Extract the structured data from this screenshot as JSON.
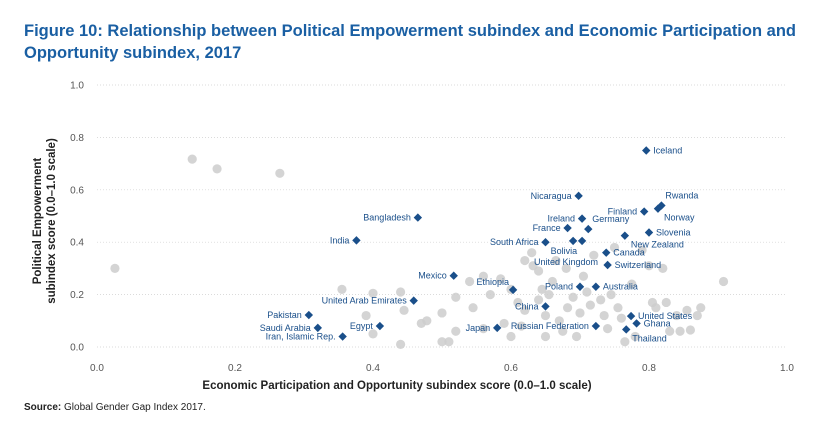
{
  "title": "Figure 10: Relationship between Political Empowerment subindex and Economic Participation and Opportunity subindex, 2017",
  "source": {
    "label": "Source:",
    "text": " Global Gender Gap Index 2017."
  },
  "chart_data": {
    "type": "scatter",
    "xlabel": "Economic Participation and Opportunity subindex score (0.0–1.0 scale)",
    "ylabel_line1": "Political Empowerment",
    "ylabel_line2": "subindex score (0.0–1.0 scale)",
    "xlim": [
      0.0,
      1.0
    ],
    "ylim": [
      0.0,
      1.0
    ],
    "xticks": [
      "0.0",
      "0.2",
      "0.4",
      "0.6",
      "0.8",
      "1.0"
    ],
    "yticks": [
      "0.0",
      "0.2",
      "0.4",
      "0.6",
      "0.8",
      "1.0"
    ],
    "grid": "horizontal",
    "colors": {
      "highlight": "#1a4f8a",
      "background_points": "#cccccc",
      "title": "#1a5fa3"
    },
    "highlighted": [
      {
        "label": "Iceland",
        "x": 0.796,
        "y": 0.75,
        "anchor": "right"
      },
      {
        "label": "Rwanda",
        "x": 0.818,
        "y": 0.54,
        "anchor": "right-up"
      },
      {
        "label": "Nicaragua",
        "x": 0.698,
        "y": 0.577,
        "anchor": "left"
      },
      {
        "label": "Finland",
        "x": 0.793,
        "y": 0.517,
        "anchor": "left"
      },
      {
        "label": "Norway",
        "x": 0.813,
        "y": 0.528,
        "anchor": "right-down"
      },
      {
        "label": "Bangladesh",
        "x": 0.465,
        "y": 0.494,
        "anchor": "left"
      },
      {
        "label": "Ireland",
        "x": 0.703,
        "y": 0.49,
        "anchor": "left"
      },
      {
        "label": "Germany",
        "x": 0.712,
        "y": 0.45,
        "anchor": "right-up"
      },
      {
        "label": "France",
        "x": 0.682,
        "y": 0.454,
        "anchor": "left"
      },
      {
        "label": "Slovenia",
        "x": 0.8,
        "y": 0.437,
        "anchor": "right"
      },
      {
        "label": "India",
        "x": 0.376,
        "y": 0.407,
        "anchor": "left"
      },
      {
        "label": "South Africa",
        "x": 0.65,
        "y": 0.4,
        "anchor": "left"
      },
      {
        "label": "Bolivia",
        "x": 0.69,
        "y": 0.405,
        "anchor": "left-down"
      },
      {
        "label": "New Zealand",
        "x": 0.765,
        "y": 0.425,
        "anchor": "right-down"
      },
      {
        "label": "Canada",
        "x": 0.738,
        "y": 0.36,
        "anchor": "right"
      },
      {
        "label": "United Kingdom",
        "x": 0.703,
        "y": 0.405,
        "anchor": "left-down2"
      },
      {
        "label": "Switzerland",
        "x": 0.74,
        "y": 0.313,
        "anchor": "right"
      },
      {
        "label": "Mexico",
        "x": 0.517,
        "y": 0.272,
        "anchor": "left"
      },
      {
        "label": "Ethiopia",
        "x": 0.603,
        "y": 0.218,
        "anchor": "left-up"
      },
      {
        "label": "Poland",
        "x": 0.7,
        "y": 0.23,
        "anchor": "left"
      },
      {
        "label": "Australia",
        "x": 0.723,
        "y": 0.23,
        "anchor": "right"
      },
      {
        "label": "United Arab Emirates",
        "x": 0.459,
        "y": 0.177,
        "anchor": "left"
      },
      {
        "label": "China",
        "x": 0.65,
        "y": 0.155,
        "anchor": "left"
      },
      {
        "label": "Pakistan",
        "x": 0.307,
        "y": 0.122,
        "anchor": "left"
      },
      {
        "label": "United States",
        "x": 0.774,
        "y": 0.118,
        "anchor": "right"
      },
      {
        "label": "Saudi Arabia",
        "x": 0.32,
        "y": 0.073,
        "anchor": "left"
      },
      {
        "label": "Egypt",
        "x": 0.41,
        "y": 0.08,
        "anchor": "left"
      },
      {
        "label": "Japan",
        "x": 0.58,
        "y": 0.073,
        "anchor": "left"
      },
      {
        "label": "Russian Federation",
        "x": 0.723,
        "y": 0.08,
        "anchor": "left"
      },
      {
        "label": "Ghana",
        "x": 0.782,
        "y": 0.09,
        "anchor": "right"
      },
      {
        "label": "Thailand",
        "x": 0.767,
        "y": 0.067,
        "anchor": "right-down"
      },
      {
        "label": "Iran, Islamic Rep.",
        "x": 0.356,
        "y": 0.04,
        "anchor": "left"
      }
    ],
    "background_points": [
      [
        0.138,
        0.717
      ],
      [
        0.174,
        0.68
      ],
      [
        0.265,
        0.663
      ],
      [
        0.026,
        0.3
      ],
      [
        0.908,
        0.25
      ],
      [
        0.355,
        0.22
      ],
      [
        0.4,
        0.205
      ],
      [
        0.44,
        0.21
      ],
      [
        0.445,
        0.14
      ],
      [
        0.47,
        0.09
      ],
      [
        0.478,
        0.1
      ],
      [
        0.39,
        0.12
      ],
      [
        0.4,
        0.05
      ],
      [
        0.44,
        0.01
      ],
      [
        0.5,
        0.13
      ],
      [
        0.51,
        0.02
      ],
      [
        0.52,
        0.06
      ],
      [
        0.52,
        0.19
      ],
      [
        0.54,
        0.25
      ],
      [
        0.56,
        0.27
      ],
      [
        0.57,
        0.2
      ],
      [
        0.585,
        0.26
      ],
      [
        0.6,
        0.22
      ],
      [
        0.61,
        0.17
      ],
      [
        0.62,
        0.14
      ],
      [
        0.62,
        0.33
      ],
      [
        0.63,
        0.36
      ],
      [
        0.632,
        0.31
      ],
      [
        0.64,
        0.29
      ],
      [
        0.64,
        0.18
      ],
      [
        0.645,
        0.22
      ],
      [
        0.65,
        0.12
      ],
      [
        0.655,
        0.2
      ],
      [
        0.66,
        0.25
      ],
      [
        0.665,
        0.33
      ],
      [
        0.67,
        0.1
      ],
      [
        0.675,
        0.06
      ],
      [
        0.68,
        0.3
      ],
      [
        0.682,
        0.15
      ],
      [
        0.69,
        0.19
      ],
      [
        0.695,
        0.04
      ],
      [
        0.7,
        0.13
      ],
      [
        0.705,
        0.27
      ],
      [
        0.71,
        0.21
      ],
      [
        0.715,
        0.16
      ],
      [
        0.72,
        0.35
      ],
      [
        0.73,
        0.18
      ],
      [
        0.735,
        0.12
      ],
      [
        0.74,
        0.07
      ],
      [
        0.745,
        0.2
      ],
      [
        0.75,
        0.38
      ],
      [
        0.755,
        0.15
      ],
      [
        0.76,
        0.11
      ],
      [
        0.765,
        0.02
      ],
      [
        0.775,
        0.24
      ],
      [
        0.78,
        0.04
      ],
      [
        0.79,
        0.37
      ],
      [
        0.8,
        0.31
      ],
      [
        0.805,
        0.17
      ],
      [
        0.81,
        0.15
      ],
      [
        0.82,
        0.3
      ],
      [
        0.825,
        0.17
      ],
      [
        0.83,
        0.06
      ],
      [
        0.84,
        0.12
      ],
      [
        0.845,
        0.06
      ],
      [
        0.855,
        0.14
      ],
      [
        0.86,
        0.065
      ],
      [
        0.87,
        0.12
      ],
      [
        0.875,
        0.15
      ],
      [
        0.56,
        0.07
      ],
      [
        0.59,
        0.09
      ],
      [
        0.6,
        0.04
      ],
      [
        0.545,
        0.15
      ],
      [
        0.5,
        0.02
      ],
      [
        0.615,
        0.08
      ],
      [
        0.65,
        0.04
      ]
    ]
  }
}
